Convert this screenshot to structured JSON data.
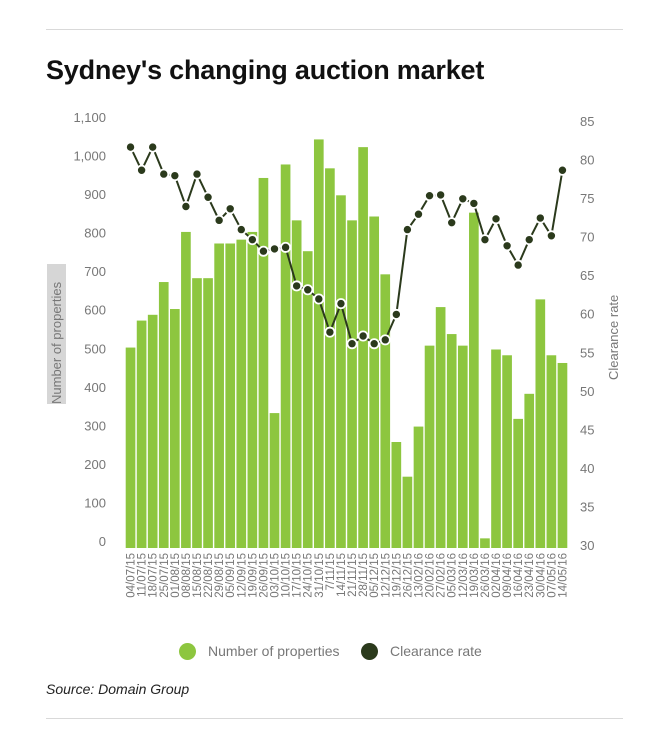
{
  "title": "Sydney's changing auction market",
  "source": "Source: Domain Group",
  "legend": {
    "bars_label": "Number of properties",
    "line_label": "Clearance rate",
    "bars_color": "#8dc63f",
    "line_color": "#2b3a1c"
  },
  "chart_data": {
    "type": "bar",
    "title": "Sydney's changing auction market",
    "categories": [
      "04/07/15",
      "11/07/15",
      "18/07/15",
      "25/07/15",
      "01/08/15",
      "08/08/15",
      "15/08/15",
      "22/08/15",
      "29/08/15",
      "05/09/15",
      "12/09/15",
      "19/09/15",
      "26/09/15",
      "03/10/15",
      "10/10/15",
      "17/10/15",
      "24/10/15",
      "31/10/15",
      "07/11/15",
      "14/11/15",
      "21/11/15",
      "28/11/15",
      "05/12/15",
      "12/12/15",
      "19/12/15",
      "26/12/15",
      "13/02/16",
      "20/02/16",
      "27/02/16",
      "05/03/16",
      "12/03/16",
      "19/03/16",
      "26/03/16",
      "02/04/16",
      "09/04/16",
      "16/04/16",
      "23/04/16",
      "30/04/16",
      "07/05/16",
      "14/05/16"
    ],
    "x_tick_labels": [
      "04/07/15",
      "11/07/15",
      "18/07/15",
      "25/07/15",
      "01/08/15",
      "08/08/15",
      "15/08/15",
      "22/08/15",
      "29/08/15",
      "05/09/15",
      "12/09/15",
      "19/09/15",
      "26/09/15",
      "03/10/15",
      "10/10/15",
      "17/10/15",
      "24/10/15",
      "31/10/15",
      "7/11/15",
      "14/11/15",
      "21/11/15",
      "28/11/15",
      "05/12/15",
      "12/12/15",
      "19/12/15",
      "26/12/15",
      "13/02/16",
      "20/02/16",
      "27/02/16",
      "05/03/16",
      "12/03/16",
      "19/03/16",
      "26/03/16",
      "02/04/16",
      "09/04/16",
      "16/04/16",
      "23/04/16",
      "30/04/16",
      "07/05/16",
      "14/05/16"
    ],
    "series": [
      {
        "name": "Number of properties",
        "type": "bar",
        "axis": "left",
        "values": [
          520,
          590,
          605,
          690,
          620,
          820,
          700,
          700,
          790,
          790,
          800,
          820,
          960,
          350,
          995,
          850,
          770,
          1060,
          985,
          915,
          850,
          1040,
          860,
          710,
          275,
          185,
          315,
          525,
          625,
          555,
          525,
          870,
          25,
          515,
          500,
          335,
          400,
          645,
          500,
          480
        ]
      },
      {
        "name": "Clearance rate",
        "type": "line",
        "axis": "right",
        "values": [
          82,
          79,
          82,
          78.5,
          78.3,
          74.3,
          78.5,
          75.5,
          72.5,
          74,
          71.3,
          70,
          68.5,
          68.8,
          69,
          64,
          63.5,
          62.3,
          58,
          61.7,
          56.5,
          57.5,
          56.5,
          57,
          60.3,
          71.3,
          73.3,
          75.7,
          75.8,
          72.2,
          75.3,
          74.7,
          70,
          72.7,
          69.2,
          66.7,
          70,
          72.8,
          70.5,
          79
        ]
      }
    ],
    "y_left": {
      "label": "Number of properties",
      "ylim": [
        0,
        1100
      ],
      "ticks": [
        "0",
        "100",
        "200",
        "300",
        "400",
        "500",
        "600",
        "700",
        "800",
        "900",
        "1,000",
        "1,100"
      ]
    },
    "y_right": {
      "label": "Clearance rate",
      "ylim": [
        30,
        85
      ],
      "ticks": [
        "30",
        "35",
        "40",
        "45",
        "50",
        "55",
        "60",
        "65",
        "70",
        "75",
        "80",
        "85"
      ]
    },
    "grid": false,
    "legend_position": "bottom"
  }
}
